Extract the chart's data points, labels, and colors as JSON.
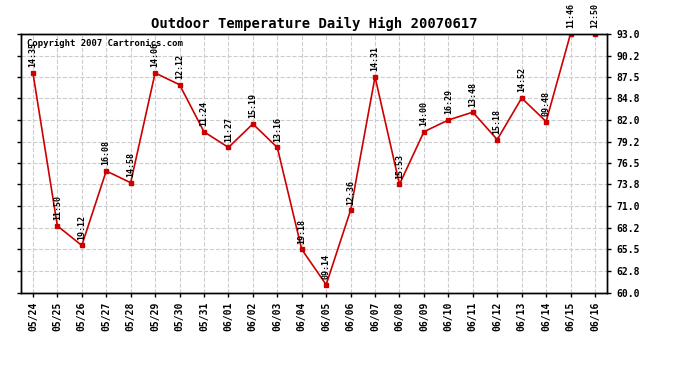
{
  "title": "Outdoor Temperature Daily High 20070617",
  "copyright": "Copyright 2007 Cartronics.com",
  "background_color": "#ffffff",
  "line_color": "#cc0000",
  "grid_color": "#cccccc",
  "dates": [
    "05/24",
    "05/25",
    "05/26",
    "05/27",
    "05/28",
    "05/29",
    "05/30",
    "05/31",
    "06/01",
    "06/02",
    "06/03",
    "06/04",
    "06/05",
    "06/06",
    "06/07",
    "06/08",
    "06/09",
    "06/10",
    "06/11",
    "06/12",
    "06/13",
    "06/14",
    "06/15",
    "06/16"
  ],
  "values": [
    88.0,
    68.5,
    66.0,
    75.5,
    74.0,
    88.0,
    86.5,
    80.5,
    78.5,
    81.5,
    78.5,
    65.5,
    61.0,
    70.5,
    87.5,
    73.8,
    80.5,
    82.0,
    83.0,
    79.5,
    84.8,
    81.8,
    93.0,
    93.0
  ],
  "labels": [
    "14:35",
    "11:50",
    "19:12",
    "16:08",
    "14:58",
    "14:06",
    "12:12",
    "11:24",
    "11:27",
    "15:19",
    "13:16",
    "19:18",
    "09:14",
    "12:36",
    "14:31",
    "15:53",
    "14:00",
    "16:29",
    "13:48",
    "15:18",
    "14:52",
    "09:48",
    "11:46",
    "12:50"
  ],
  "ylim": [
    60.0,
    93.0
  ],
  "yticks": [
    60.0,
    62.8,
    65.5,
    68.2,
    71.0,
    73.8,
    76.5,
    79.2,
    82.0,
    84.8,
    87.5,
    90.2,
    93.0
  ]
}
